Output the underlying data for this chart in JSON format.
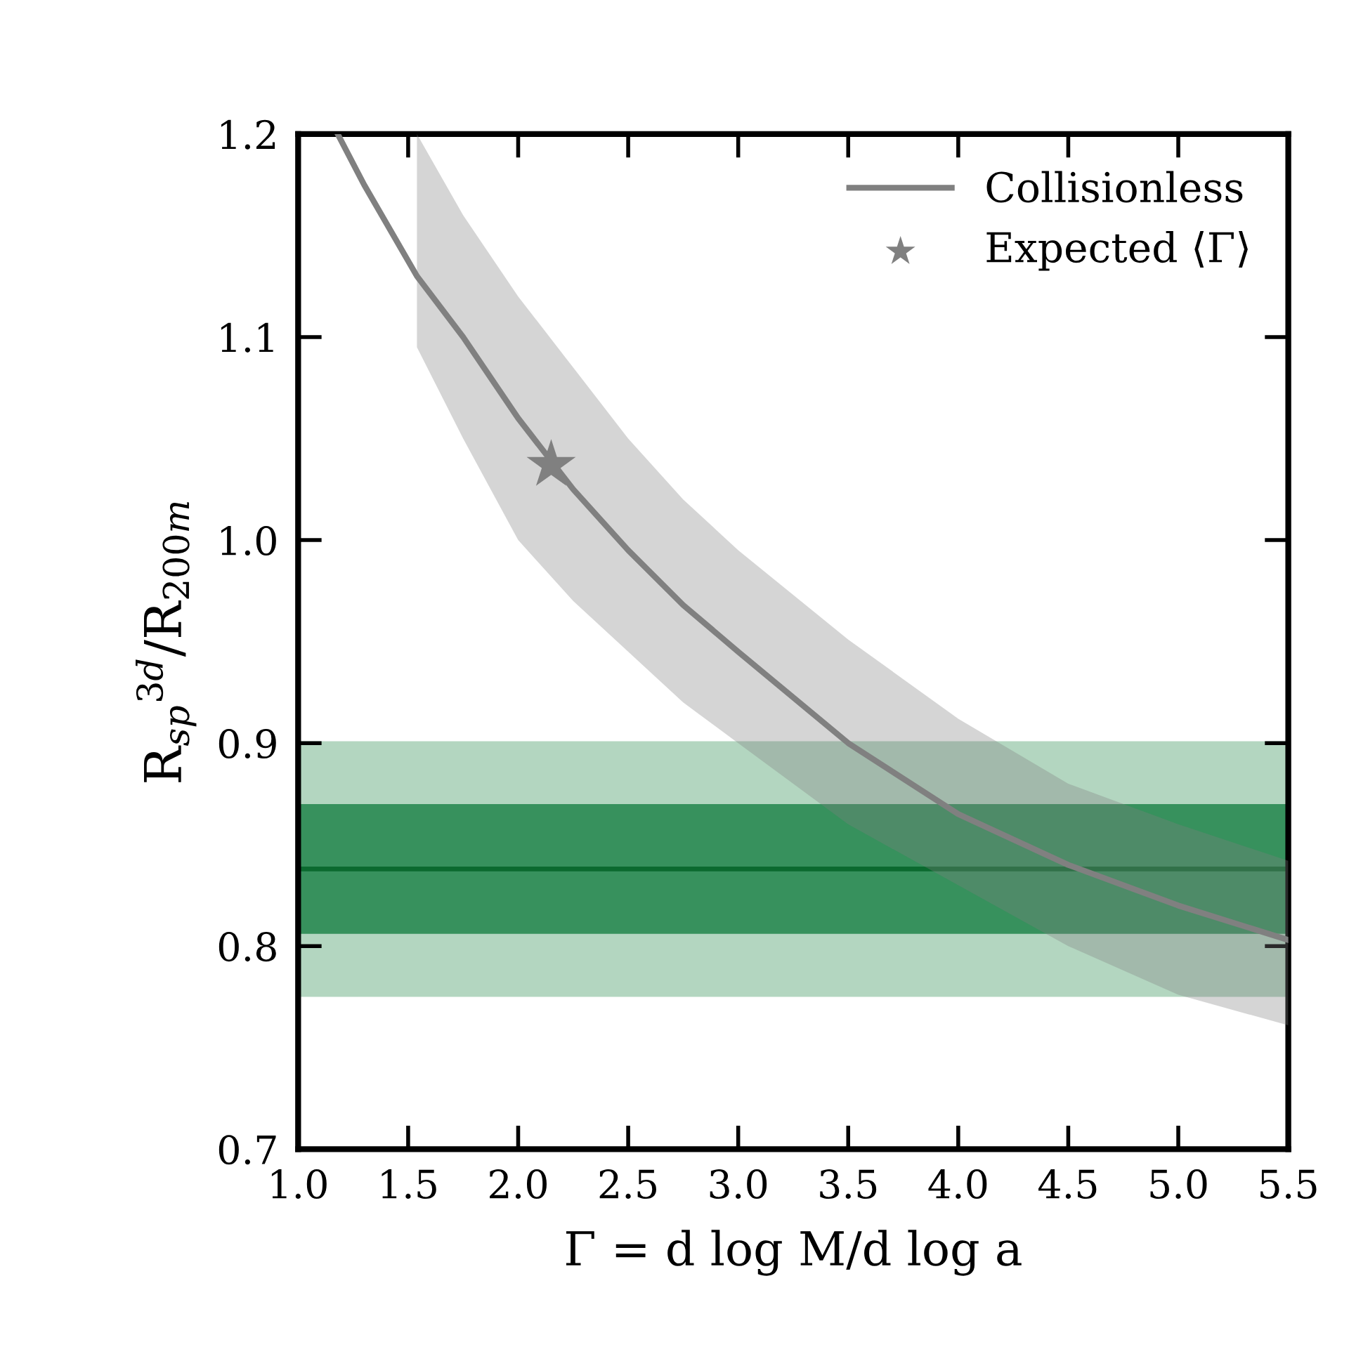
{
  "chart_data": {
    "type": "line",
    "xlabel": "Γ = d log M/d log a",
    "ylabel": "R$_{sp}$$^{3d}$/R$_{200m}$",
    "xlim": [
      1.0,
      5.5
    ],
    "ylim": [
      0.7,
      1.2
    ],
    "xticks": [
      {
        "value": 1.0,
        "label": "1.0"
      },
      1.5,
      {
        "value": 2.0,
        "label": "2.0"
      },
      2.5,
      {
        "value": 3.0,
        "label": "3.0"
      },
      3.5,
      {
        "value": 4.0,
        "label": "4.0"
      },
      4.5,
      {
        "value": 5.0,
        "label": "5.0"
      },
      5.5
    ],
    "yticks": [
      0.7,
      0.8,
      0.9,
      {
        "value": 1.0,
        "label": "1.0"
      },
      1.1,
      1.2
    ],
    "series": [
      {
        "name": "Collisionless",
        "color": "#808080",
        "x": [
          1.18,
          1.3,
          1.54,
          1.75,
          2.0,
          2.25,
          2.5,
          2.75,
          3.0,
          3.5,
          4.0,
          4.5,
          5.0,
          5.5
        ],
        "values": [
          1.2,
          1.175,
          1.13,
          1.1,
          1.06,
          1.025,
          0.995,
          0.968,
          0.945,
          0.9,
          0.865,
          0.84,
          0.82,
          0.803
        ],
        "lower": [
          null,
          null,
          1.095,
          1.05,
          1.0,
          0.97,
          0.945,
          0.92,
          0.9,
          0.86,
          0.83,
          0.8,
          0.776,
          0.761
        ],
        "upper": [
          null,
          null,
          1.2,
          1.16,
          1.12,
          1.085,
          1.05,
          1.02,
          0.995,
          0.951,
          0.912,
          0.88,
          0.86,
          0.842
        ]
      },
      {
        "name": "Expected ⟨Γ⟩",
        "type": "scatter",
        "marker": "star",
        "color": "#808080",
        "x": [
          2.15
        ],
        "values": [
          1.037
        ]
      }
    ],
    "bands": [
      {
        "axis": "y",
        "from": 0.776,
        "to": 0.9,
        "color": "#afd4bd"
      },
      {
        "axis": "y",
        "from": 0.807,
        "to": 0.869,
        "color": "#318e58"
      }
    ],
    "ref_lines": [
      {
        "axis": "y",
        "value": 0.838,
        "color": "#0b6a2f"
      }
    ],
    "grid": false,
    "legend": "top right"
  }
}
